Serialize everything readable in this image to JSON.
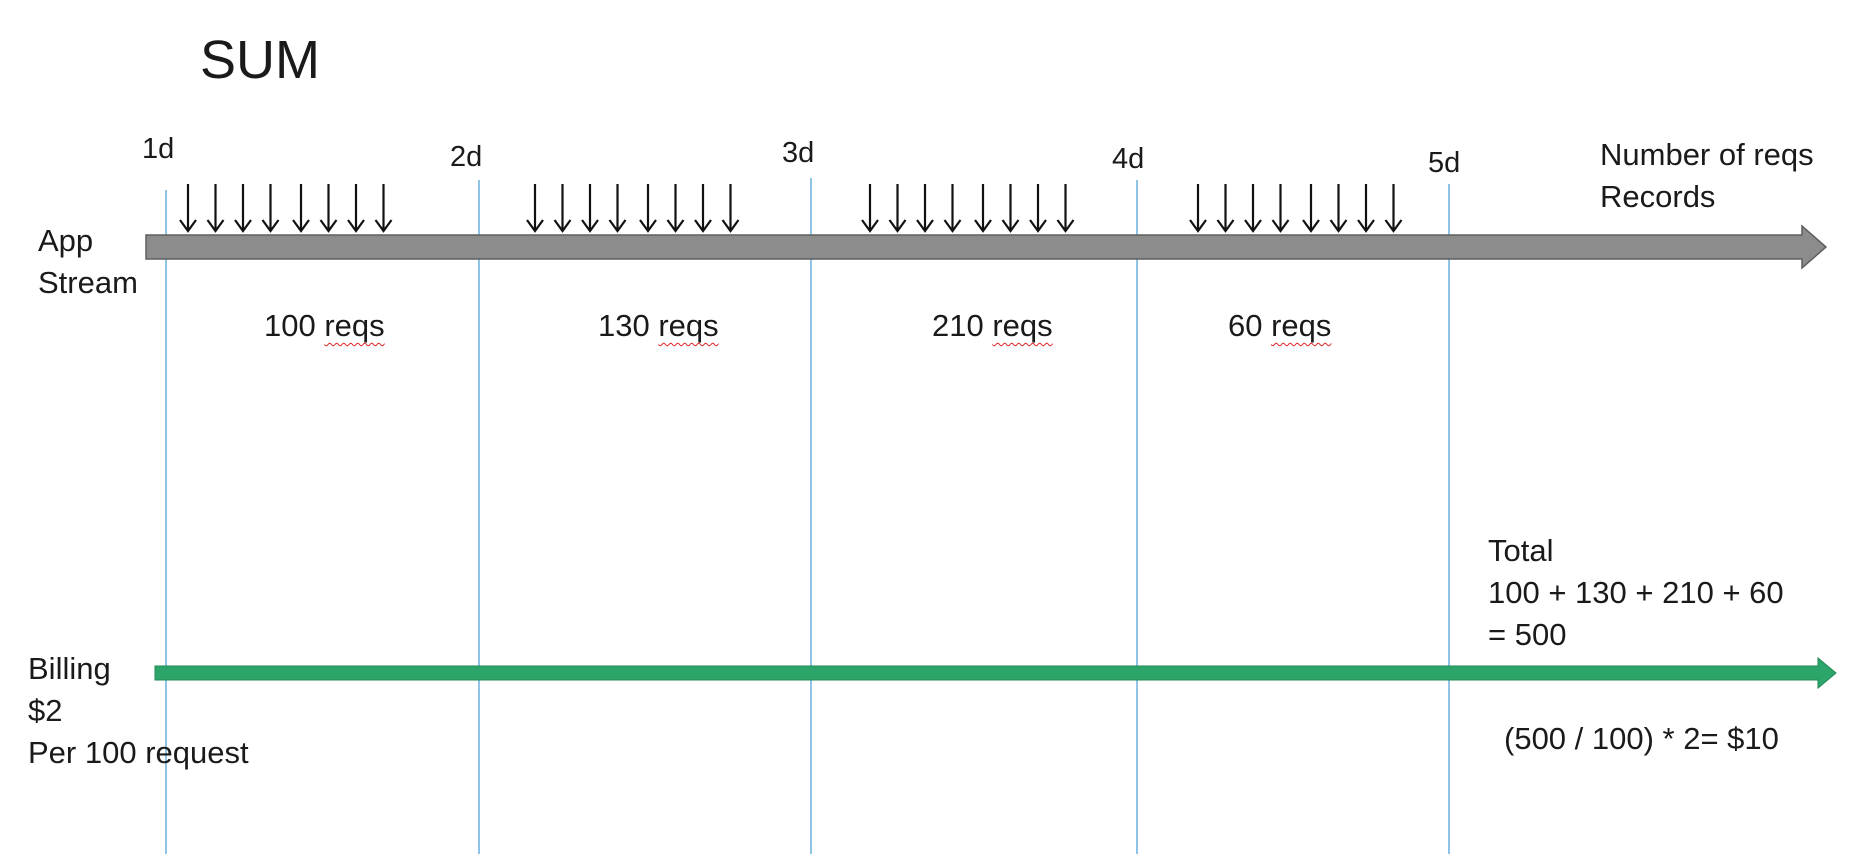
{
  "title": "SUM",
  "days": [
    "1d",
    "2d",
    "3d",
    "4d",
    "5d"
  ],
  "app_stream": {
    "label_line1": "App",
    "label_line2": "Stream",
    "color": "#8c8c8c",
    "axis_label_line1": "Number of reqs",
    "axis_label_line2": "Records",
    "arrows_per_period": 8
  },
  "periods": [
    {
      "number": "100",
      "unit": "reqs"
    },
    {
      "number": "130",
      "unit": "reqs"
    },
    {
      "number": "210",
      "unit": "reqs"
    },
    {
      "number": "60",
      "unit": "reqs"
    }
  ],
  "billing": {
    "label_line1": "Billing",
    "label_line2": "$2",
    "label_line3": "Per 100 request",
    "color": "#2ca56a",
    "total_line1": "Total",
    "total_line2": "100 + 130 + 210 + 60",
    "total_line3": "= 500",
    "cost": "(500 / 100) * 2= $10"
  },
  "marker_color": "#8fc4e6"
}
